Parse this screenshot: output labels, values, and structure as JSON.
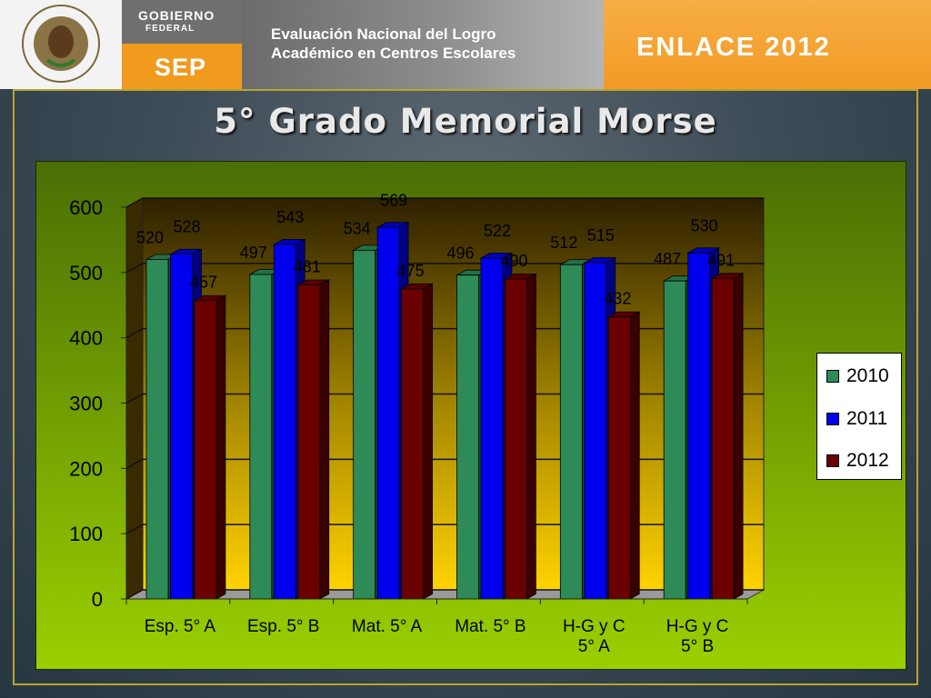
{
  "header": {
    "gov_line1": "GOBIERNO",
    "gov_line2": "FEDERAL",
    "sep": "SEP",
    "eval_line1": "Evaluación Nacional del Logro",
    "eval_line2": "Académico en Centros Escolares",
    "enlace": "ENLACE 2012",
    "seal_text": "ESTADOS UNIDOS MEXICANOS"
  },
  "title": "5° Grado Memorial Morse",
  "colors": {
    "2010": "#2e8b57",
    "2011": "#0000ee",
    "2012": "#6b0000"
  },
  "legend": [
    "2010",
    "2011",
    "2012"
  ],
  "chart_data": {
    "type": "bar",
    "title": "5° Grado Memorial Morse",
    "categories": [
      "Esp. 5° A",
      "Esp. 5° B",
      "Mat. 5° A",
      "Mat. 5° B",
      "H-G y C 5° A",
      "H-G y C 5° B"
    ],
    "category_lines": [
      [
        "Esp. 5° A"
      ],
      [
        "Esp. 5° B"
      ],
      [
        "Mat. 5° A"
      ],
      [
        "Mat. 5° B"
      ],
      [
        "H-G y C",
        "5° A"
      ],
      [
        "H-G y C",
        "5° B"
      ]
    ],
    "series": [
      {
        "name": "2010",
        "values": [
          520,
          497,
          534,
          496,
          512,
          487
        ]
      },
      {
        "name": "2011",
        "values": [
          528,
          543,
          569,
          522,
          515,
          530
        ]
      },
      {
        "name": "2012",
        "values": [
          457,
          481,
          475,
          490,
          432,
          491
        ]
      }
    ],
    "ylim": [
      0,
      600
    ],
    "yticks": [
      0,
      100,
      200,
      300,
      400,
      500,
      600
    ],
    "grid": true,
    "legend": "right"
  }
}
